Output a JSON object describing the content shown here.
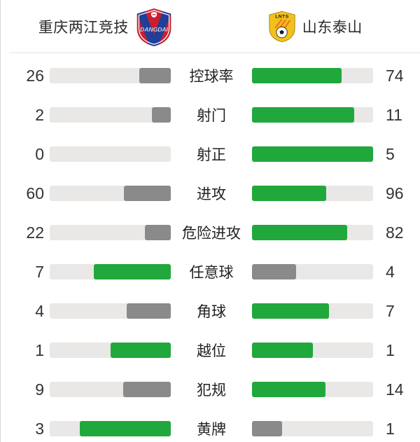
{
  "header": {
    "home_team": {
      "name": "重庆两江竞技",
      "badge_text": "DANGDAI"
    },
    "away_team": {
      "name": "山东泰山",
      "badge_text": "LNTS"
    }
  },
  "colors": {
    "leading_bar": "#21a83c",
    "trailing_bar": "#8a8a8a",
    "bar_track": "#e9e8e6",
    "home_badge_primary": "#c8202f",
    "home_badge_stripe": "#1f3f99",
    "away_badge_primary": "#f3c11b",
    "away_badge_stripe": "#ee7d1e"
  },
  "chart_data": {
    "type": "bar",
    "orientation": "horizontal-paired",
    "categories": [
      "控球率",
      "射门",
      "射正",
      "进攻",
      "危险进攻",
      "任意球",
      "角球",
      "越位",
      "犯规",
      "黄牌"
    ],
    "series": [
      {
        "name": "重庆两江竞技",
        "values": [
          26,
          2,
          0,
          60,
          22,
          7,
          4,
          1,
          9,
          3
        ]
      },
      {
        "name": "山东泰山",
        "values": [
          74,
          11,
          5,
          96,
          82,
          4,
          7,
          1,
          14,
          1
        ]
      }
    ],
    "value_rule": "bar fill = value / (home + away), higher value drawn green, lower gray, tie both green",
    "legend_position": "none",
    "grid": false
  }
}
